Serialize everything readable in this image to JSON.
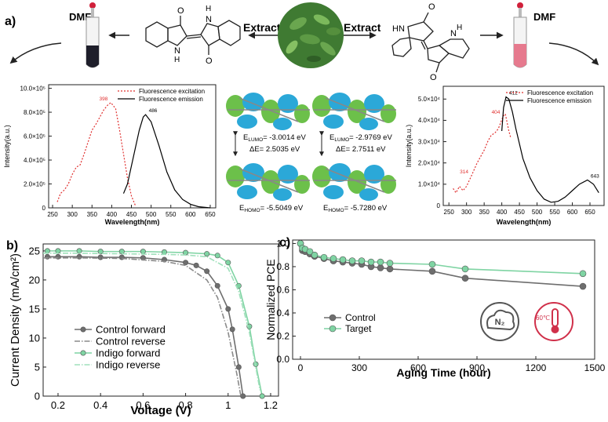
{
  "panel_labels": [
    "a)",
    "b)",
    "c)"
  ],
  "scheme": {
    "solvent_left": "DMF",
    "solvent_right": "DMF",
    "extract_left": "Extract",
    "extract_right": "Extract",
    "atoms_left": [
      "O",
      "H",
      "N",
      "N",
      "H",
      "O"
    ],
    "atoms_right": [
      "O",
      "HN",
      "N",
      "H",
      "O"
    ],
    "orbitals": [
      {
        "lumo": {
          "sym": "E",
          "sub": "LUMO",
          "text": "= -3.0014 eV"
        },
        "gap": "ΔE= 2.5035 eV",
        "homo": {
          "sym": "E",
          "sub": "HOMO",
          "text": "= -5.5049 eV"
        }
      },
      {
        "lumo": {
          "sym": "E",
          "sub": "LUMO",
          "text": "= -2.9769 eV"
        },
        "gap": "ΔE= 2.7511 eV",
        "homo": {
          "sym": "E",
          "sub": "HOMO",
          "text": "= -5.7280 eV"
        }
      }
    ],
    "icons": [
      "N₂",
      "60℃"
    ]
  },
  "chart_data": [
    {
      "type": "line",
      "xlabel": "Wavelength(nm)",
      "ylabel": "Intensity(a.u.)",
      "xlim": [
        240,
        664
      ],
      "xticks": [
        250,
        300,
        350,
        400,
        450,
        500,
        550,
        600,
        650
      ],
      "ylim": [
        0,
        1030000
      ],
      "yticks": [
        0,
        {
          "value": 200000,
          "label": "2.0×10⁵"
        },
        {
          "value": 400000,
          "label": "4.0×10⁵"
        },
        {
          "value": 600000,
          "label": "6.0×10⁵"
        },
        {
          "value": 800000,
          "label": "8.0×10⁵"
        },
        {
          "value": 1000000,
          "label": "10.0×10⁵"
        }
      ],
      "grid": false,
      "legend": "upper right",
      "series": [
        {
          "name": "Fluorescence excitation",
          "color": "#e0302f",
          "dash": "dotted",
          "marker": false,
          "x": [
            262,
            270,
            280,
            290,
            300,
            310,
            320,
            330,
            340,
            350,
            360,
            370,
            380,
            390,
            398,
            410,
            420,
            430,
            440,
            450,
            460
          ],
          "values": [
            50000,
            120000,
            150000,
            200000,
            280000,
            340000,
            360000,
            450000,
            550000,
            650000,
            700000,
            760000,
            820000,
            860000,
            880000,
            830000,
            650000,
            450000,
            250000,
            100000,
            20000
          ]
        },
        {
          "name": "Fluorescence emission",
          "color": "#000000",
          "dash": "solid",
          "marker": false,
          "x": [
            430,
            440,
            450,
            460,
            470,
            480,
            486,
            500,
            520,
            540,
            560,
            580,
            600,
            620,
            650
          ],
          "values": [
            120000,
            200000,
            350000,
            500000,
            650000,
            760000,
            780000,
            720000,
            520000,
            300000,
            150000,
            70000,
            30000,
            10000,
            0
          ]
        }
      ],
      "annotations": [
        "398",
        "486"
      ]
    },
    {
      "type": "line",
      "xlabel": "Wavelength(nm)",
      "ylabel": "Intensity(a.u.)",
      "xlim": [
        234,
        690
      ],
      "xticks": [
        250,
        300,
        350,
        400,
        450,
        500,
        550,
        600,
        650
      ],
      "ylim": [
        0,
        56000
      ],
      "yticks": [
        0,
        {
          "value": 10000,
          "label": "1.0×10⁴"
        },
        {
          "value": 20000,
          "label": "2.0×10⁴"
        },
        {
          "value": 30000,
          "label": "3.0×10⁴"
        },
        {
          "value": 40000,
          "label": "4.0×10⁴"
        },
        {
          "value": 50000,
          "label": "5.0×10⁴"
        }
      ],
      "grid": false,
      "legend": "upper right",
      "series": [
        {
          "name": "Fluorescence excitation",
          "color": "#e0302f",
          "dash": "dotted",
          "marker": false,
          "x": [
            262,
            270,
            280,
            290,
            300,
            314,
            330,
            340,
            350,
            360,
            370,
            380,
            390,
            404,
            410,
            415,
            420,
            425
          ],
          "values": [
            8000,
            6000,
            9000,
            7000,
            9000,
            14000,
            20000,
            23000,
            26000,
            30000,
            33000,
            34000,
            36000,
            42000,
            43000,
            39000,
            35000,
            32000
          ]
        },
        {
          "name": "Fluorescence emission",
          "color": "#000000",
          "dash": "solid",
          "marker": false,
          "x": [
            400,
            405,
            412,
            420,
            430,
            440,
            450,
            460,
            480,
            500,
            520,
            540,
            560,
            580,
            600,
            620,
            643,
            660,
            675
          ],
          "values": [
            35000,
            46000,
            51000,
            50000,
            44000,
            36000,
            29000,
            22000,
            13000,
            7000,
            3000,
            1500,
            2000,
            4000,
            7000,
            10000,
            12000,
            10000,
            6000
          ]
        }
      ],
      "annotations": [
        "412",
        "404",
        "314",
        "643"
      ]
    },
    {
      "type": "line",
      "xlabel": "Voltage (V)",
      "ylabel": "Current Density (mA/cm²)",
      "xlim": [
        0.13,
        1.237
      ],
      "xticks": [
        0.2,
        0.4,
        0.6,
        0.8,
        1,
        1.2
      ],
      "ylim": [
        0,
        26.2
      ],
      "yticks": [
        0,
        5,
        10,
        15,
        20,
        25
      ],
      "grid": false,
      "legend": "lower left",
      "series": [
        {
          "name": "Control forward",
          "color": "#6e6e6e",
          "dash": "solid",
          "marker": true,
          "x": [
            0.15,
            0.2,
            0.3,
            0.4,
            0.5,
            0.6,
            0.7,
            0.8,
            0.85,
            0.9,
            0.95,
            1.0,
            1.02,
            1.05,
            1.07
          ],
          "values": [
            24.0,
            24.0,
            24.0,
            23.9,
            23.9,
            23.8,
            23.5,
            23.0,
            22.5,
            21.5,
            19.0,
            15.0,
            11.5,
            5.0,
            0
          ]
        },
        {
          "name": "Control reverse",
          "color": "#8a8a8a",
          "dash": "dashdot",
          "marker": false,
          "x": [
            0.13,
            0.3,
            0.5,
            0.7,
            0.8,
            0.9,
            0.95,
            1.0,
            1.04,
            1.06
          ],
          "values": [
            23.8,
            23.8,
            23.7,
            23.2,
            22.5,
            20.0,
            17.0,
            11.0,
            4.0,
            0
          ]
        },
        {
          "name": "Indigo forward",
          "color": "#7fd4a3",
          "dash": "solid",
          "marker": true,
          "x": [
            0.15,
            0.2,
            0.3,
            0.4,
            0.5,
            0.6,
            0.7,
            0.8,
            0.9,
            0.95,
            1.0,
            1.05,
            1.1,
            1.13,
            1.16
          ],
          "values": [
            25.0,
            25.0,
            25.0,
            24.9,
            24.9,
            24.9,
            24.8,
            24.7,
            24.5,
            24.2,
            23.0,
            19.0,
            12.0,
            5.5,
            0
          ]
        },
        {
          "name": "Indigo reverse",
          "color": "#9fe0bb",
          "dash": "dashdot",
          "marker": false,
          "x": [
            0.13,
            0.3,
            0.5,
            0.7,
            0.8,
            0.9,
            1.0,
            1.05,
            1.1,
            1.15
          ],
          "values": [
            24.6,
            24.6,
            24.5,
            24.4,
            24.3,
            24.0,
            22.0,
            18.0,
            11.0,
            1.0
          ]
        }
      ]
    },
    {
      "type": "line",
      "xlabel": "Aging Time (hour)",
      "ylabel": "Normalized PCE",
      "xlim": [
        -40,
        1500
      ],
      "xticks": [
        0,
        300,
        600,
        900,
        1200,
        1500
      ],
      "ylim": [
        0,
        1.03
      ],
      "yticks": [
        {
          "value": 0,
          "label": "0.0"
        },
        0.2,
        0.4,
        0.6,
        0.8,
        {
          "value": 1,
          "label": "1.0"
        }
      ],
      "grid": false,
      "legend": "lower left",
      "series": [
        {
          "name": "Control",
          "color": "#6e6e6e",
          "dash": "solid",
          "marker": true,
          "x": [
            0,
            10,
            24,
            48,
            72,
            120,
            168,
            216,
            264,
            312,
            360,
            408,
            456,
            672,
            840,
            1440
          ],
          "values": [
            1.0,
            0.94,
            0.93,
            0.91,
            0.89,
            0.87,
            0.85,
            0.84,
            0.83,
            0.82,
            0.8,
            0.79,
            0.78,
            0.76,
            0.7,
            0.63
          ]
        },
        {
          "name": "Target",
          "color": "#7fd4a3",
          "dash": "solid",
          "marker": true,
          "x": [
            0,
            10,
            24,
            48,
            72,
            120,
            168,
            216,
            264,
            312,
            360,
            408,
            456,
            672,
            840,
            1440
          ],
          "values": [
            1.0,
            0.96,
            0.95,
            0.93,
            0.9,
            0.88,
            0.87,
            0.86,
            0.85,
            0.85,
            0.84,
            0.84,
            0.83,
            0.82,
            0.78,
            0.74
          ]
        }
      ]
    }
  ]
}
